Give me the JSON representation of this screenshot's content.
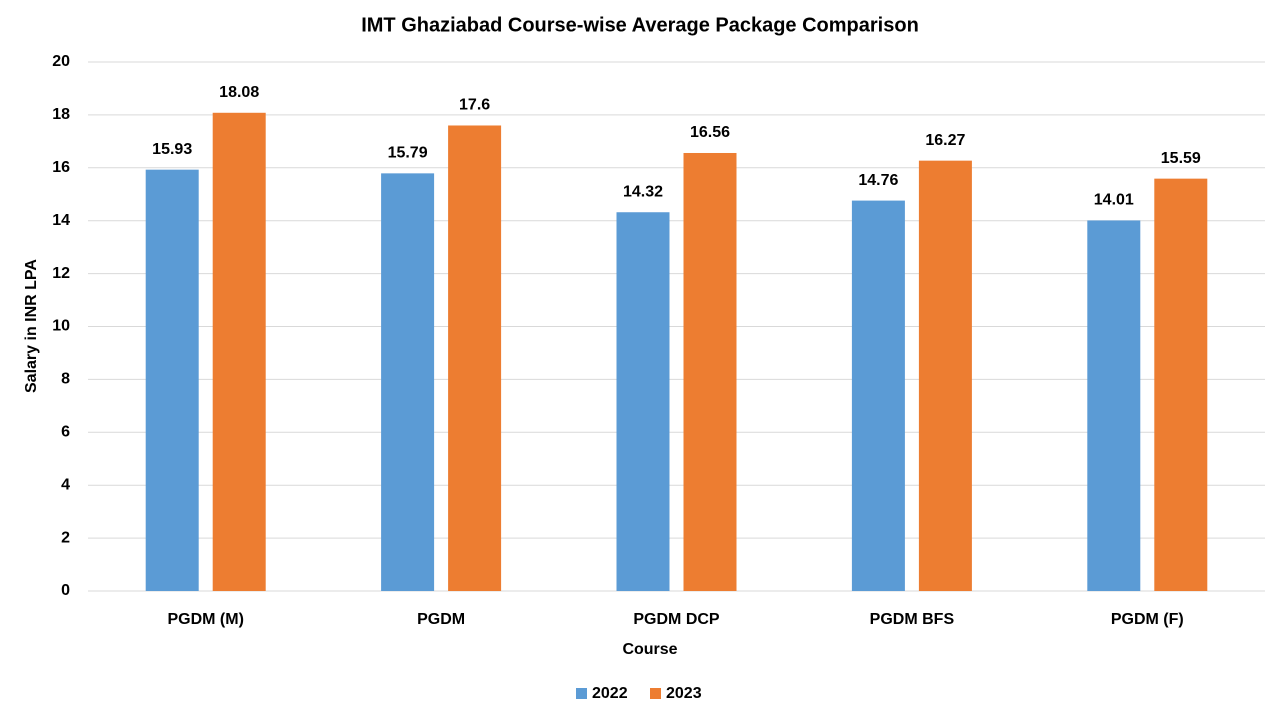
{
  "chart_data": {
    "type": "bar",
    "title": "IMT Ghaziabad Course-wise Average Package Comparison",
    "x_label": "Course",
    "y_label": "Salary in INR LPA",
    "categories": [
      "PGDM (M)",
      "PGDM",
      "PGDM DCP",
      "PGDM BFS",
      "PGDM (F)"
    ],
    "series": [
      {
        "name": "2022",
        "color": "#5b9bd5",
        "values": [
          15.93,
          15.79,
          14.32,
          14.76,
          14.01
        ]
      },
      {
        "name": "2023",
        "color": "#ed7d31",
        "values": [
          18.08,
          17.6,
          16.56,
          16.27,
          15.59
        ]
      }
    ],
    "ylim": [
      0,
      20
    ],
    "yticks": [
      0,
      2,
      4,
      6,
      8,
      10,
      12,
      14,
      16,
      18,
      20
    ],
    "grid": true,
    "legend": "bottom"
  }
}
